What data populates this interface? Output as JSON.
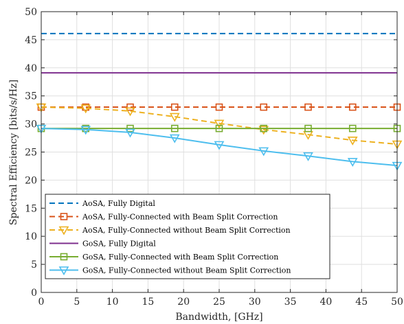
{
  "chart_data": {
    "type": "line",
    "title": "",
    "xlabel": "Bandwidth, [GHz]",
    "ylabel": "Spectral Efficiency [bits/s/Hz]",
    "xlim": [
      0,
      50
    ],
    "ylim": [
      0,
      50
    ],
    "xticks": [
      0,
      5,
      10,
      15,
      20,
      25,
      30,
      35,
      40,
      45,
      50
    ],
    "yticks": [
      0,
      5,
      10,
      15,
      20,
      25,
      30,
      35,
      40,
      45,
      50
    ],
    "grid": true,
    "legend_position": "bottom-left",
    "series": [
      {
        "name": "AoSA, Fully Digital",
        "color": "#0072BD",
        "line": "dashed",
        "marker": "none",
        "x": [
          0,
          50
        ],
        "y": [
          46.1,
          46.1
        ]
      },
      {
        "name": "AoSA, Fully-Connected with Beam Split Correction",
        "color": "#D95319",
        "line": "dashed",
        "marker": "square",
        "x": [
          0,
          6.25,
          12.5,
          18.75,
          25,
          31.25,
          37.5,
          43.75,
          50
        ],
        "y": [
          33.0,
          33.0,
          33.0,
          33.0,
          33.0,
          33.0,
          33.0,
          33.0,
          33.0
        ]
      },
      {
        "name": "AoSA, Fully-Connected without Beam Split Correction",
        "color": "#EDB120",
        "line": "dashed",
        "marker": "triangle-down",
        "x": [
          0,
          6.25,
          12.5,
          18.75,
          25,
          31.25,
          37.5,
          43.75,
          50
        ],
        "y": [
          33.0,
          32.8,
          32.3,
          31.3,
          30.1,
          29.0,
          28.1,
          27.1,
          26.4
        ]
      },
      {
        "name": "GoSA, Fully Digital",
        "color": "#7E2F8E",
        "line": "solid",
        "marker": "none",
        "x": [
          0,
          50
        ],
        "y": [
          39.1,
          39.1
        ]
      },
      {
        "name": "GoSA, Fully-Connected with Beam Split Correction",
        "color": "#77AC30",
        "line": "solid",
        "marker": "square",
        "x": [
          0,
          6.25,
          12.5,
          18.75,
          25,
          31.25,
          37.5,
          43.75,
          50
        ],
        "y": [
          29.2,
          29.2,
          29.2,
          29.2,
          29.2,
          29.2,
          29.2,
          29.2,
          29.2
        ]
      },
      {
        "name": "GoSA, Fully-Connected without Beam Split Correction",
        "color": "#4DBEEE",
        "line": "solid",
        "marker": "triangle-down",
        "x": [
          0,
          6.25,
          12.5,
          18.75,
          25,
          31.25,
          37.5,
          43.75,
          50
        ],
        "y": [
          29.2,
          29.0,
          28.5,
          27.5,
          26.3,
          25.2,
          24.3,
          23.3,
          22.6
        ]
      }
    ]
  }
}
